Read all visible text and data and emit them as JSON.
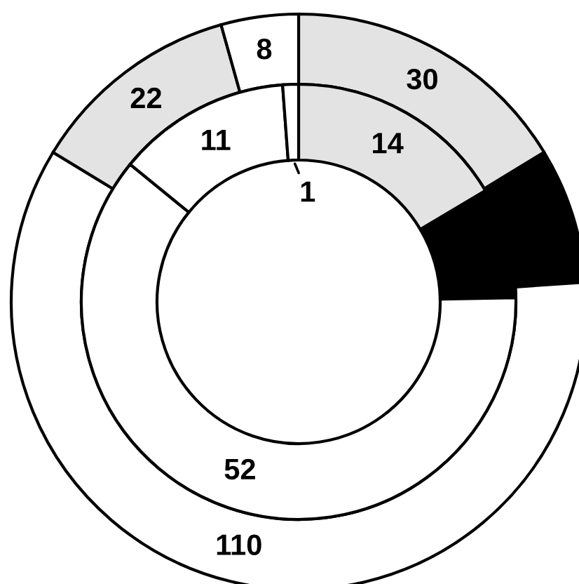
{
  "chart_data": {
    "type": "donut",
    "categories": [
      null,
      null,
      null,
      null,
      null
    ],
    "series": [
      {
        "values": [
          30,
          14,
          110,
          22,
          8
        ],
        "colors": [
          "#e3e3e3",
          "#000000",
          "#ffffff",
          "#e3e3e3",
          "#ffffff"
        ],
        "value_labels": [
          "30",
          null,
          "110",
          "22",
          "8"
        ]
      },
      {
        "values": [
          14,
          7,
          52,
          11,
          1
        ],
        "colors": [
          "#e3e3e3",
          "#000000",
          "#ffffff",
          "#ffffff",
          "#ffffff"
        ],
        "value_labels": [
          "14",
          null,
          "52",
          "11",
          "1"
        ]
      }
    ]
  }
}
